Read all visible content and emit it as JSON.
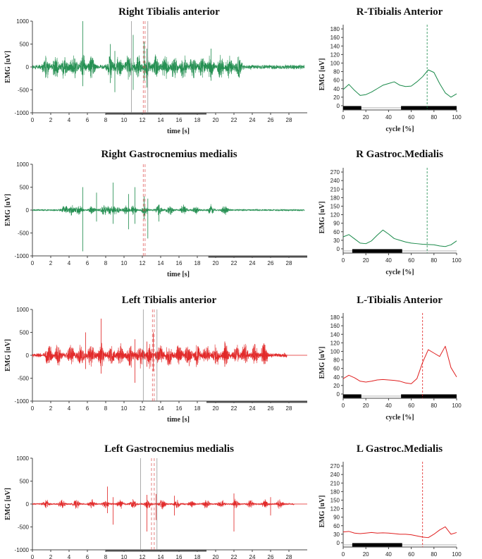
{
  "chart_data": [
    {
      "type": "line",
      "kind": "emg",
      "title": "Right Tibialis anterior",
      "xlabel": "time [s]",
      "ylabel": "EMG [uV]",
      "xlim": [
        0,
        30
      ],
      "ylim": [
        -1000,
        1000
      ],
      "x_ticks": [
        0,
        2,
        4,
        6,
        8,
        10,
        12,
        14,
        16,
        18,
        20,
        22,
        24,
        26,
        28
      ],
      "y_ticks": [
        1000,
        500,
        0,
        -500,
        -1000
      ],
      "signal_color": "#1a8a4a",
      "marker_color": "#e06060",
      "series": [
        {
          "x": [
            0,
            29.7
          ],
          "amplitude": 250
        }
      ],
      "bursts": [
        1.5,
        2.5,
        3.5,
        4.5,
        5.5,
        6.5,
        8.5,
        9.5,
        10.5,
        11.5,
        12.5,
        13.5,
        14.5,
        15.5,
        16.5,
        17.5,
        18.5,
        19.5,
        20.5,
        21.5,
        22.5
      ],
      "spikes": [
        [
          5.5,
          1000,
          -420
        ],
        [
          8.5,
          500,
          -350
        ],
        [
          9.0,
          350,
          -550
        ],
        [
          11.0,
          700,
          -500
        ],
        [
          12.2,
          550,
          -300
        ],
        [
          12.5,
          400,
          -450
        ],
        [
          19.5,
          400,
          -300
        ]
      ],
      "vlines_gray": [
        10.8,
        12.6
      ],
      "vlines_dashed": [
        12.1,
        12.3
      ],
      "baseline_bar": [
        8,
        19
      ]
    },
    {
      "type": "line",
      "kind": "cycle",
      "title": "R-Tibialis Anterior",
      "xlabel": "cycle [%]",
      "ylabel": "EMG [uV]",
      "xlim": [
        0,
        100
      ],
      "ylim": [
        -10,
        190
      ],
      "x_ticks": [
        0,
        20,
        40,
        60,
        80,
        100
      ],
      "y_ticks": [
        0,
        20,
        40,
        60,
        80,
        100,
        120,
        140,
        160,
        180
      ],
      "line_color": "#1a8a4a",
      "x": [
        0,
        5,
        10,
        15,
        20,
        25,
        30,
        35,
        40,
        45,
        50,
        55,
        60,
        65,
        70,
        75,
        80,
        85,
        90,
        95,
        100
      ],
      "y": [
        38,
        50,
        36,
        24,
        26,
        32,
        40,
        48,
        52,
        56,
        48,
        45,
        46,
        56,
        68,
        84,
        78,
        52,
        30,
        20,
        28
      ],
      "vline": 74,
      "on_bars": [
        [
          0,
          16
        ],
        [
          51,
          100
        ]
      ],
      "off_range": [
        16,
        51
      ]
    },
    {
      "type": "line",
      "kind": "emg",
      "title": "Right Gastrocnemius medialis",
      "xlabel": "time [s]",
      "ylabel": "EMG [uV]",
      "xlim": [
        0,
        30
      ],
      "ylim": [
        -1000,
        1000
      ],
      "x_ticks": [
        0,
        2,
        4,
        6,
        8,
        10,
        12,
        14,
        16,
        18,
        20,
        22,
        24,
        26,
        28
      ],
      "y_ticks": [
        1000,
        500,
        0,
        -500,
        -1000
      ],
      "signal_color": "#1a8a4a",
      "marker_color": "#e06060",
      "series": [
        {
          "x": [
            0,
            29.7
          ],
          "amplitude": 100
        }
      ],
      "bursts": [
        3.5,
        4.3,
        5.1,
        6.5,
        7.8,
        8.5,
        9.2,
        10.2,
        11.0,
        12.3,
        13.8,
        15.0,
        16.5,
        17.8,
        19.5,
        21.0
      ],
      "spikes": [
        [
          5.5,
          500,
          -900
        ],
        [
          7.0,
          380,
          -250
        ],
        [
          8.8,
          600,
          -300
        ],
        [
          10.5,
          350,
          -420
        ],
        [
          11.2,
          500,
          -300
        ],
        [
          12.2,
          300,
          -200
        ],
        [
          12.6,
          250,
          -620
        ],
        [
          13.8,
          120,
          -250
        ]
      ],
      "vlines_gray": [],
      "vlines_dashed": [
        12.1,
        12.3
      ],
      "baseline_bar": [
        19.2,
        30
      ]
    },
    {
      "type": "line",
      "kind": "cycle",
      "title": "R Gastroc.Medialis",
      "xlabel": "cycle [%]",
      "ylabel": "EMG [uV]",
      "xlim": [
        0,
        100
      ],
      "ylim": [
        -15,
        285
      ],
      "x_ticks": [
        0,
        20,
        40,
        60,
        80,
        100
      ],
      "y_ticks": [
        0,
        30,
        60,
        90,
        120,
        150,
        180,
        210,
        240,
        270
      ],
      "line_color": "#1a8a4a",
      "x": [
        0,
        5,
        10,
        15,
        20,
        25,
        30,
        35,
        40,
        45,
        50,
        55,
        60,
        65,
        70,
        75,
        80,
        85,
        90,
        95,
        100
      ],
      "y": [
        42,
        50,
        35,
        20,
        18,
        28,
        48,
        66,
        52,
        36,
        30,
        24,
        20,
        18,
        16,
        15,
        14,
        10,
        8,
        14,
        28
      ],
      "vline": 74,
      "on_bars": [
        [
          8,
          52
        ]
      ],
      "off_range": [
        0,
        100
      ]
    },
    {
      "type": "line",
      "kind": "emg",
      "title": "Left Tibialis anterior",
      "xlabel": "time [s]",
      "ylabel": "EMG [uV]",
      "xlim": [
        0,
        30
      ],
      "ylim": [
        -1000,
        1000
      ],
      "x_ticks": [
        0,
        2,
        4,
        6,
        8,
        10,
        12,
        14,
        16,
        18,
        20,
        22,
        24,
        26,
        28
      ],
      "y_ticks": [
        1000,
        500,
        0,
        -500,
        -1000
      ],
      "signal_color": "#e02020",
      "marker_color": "#e06060",
      "series": [
        {
          "x": [
            0,
            27.8
          ],
          "amplitude": 230
        }
      ],
      "bursts": [
        1.8,
        2.8,
        4.2,
        5.3,
        6.4,
        7.5,
        8.6,
        9.6,
        10.7,
        11.8,
        12.8,
        13.9,
        14.9,
        16.0,
        17.0,
        18.0,
        19.0,
        20.1,
        21.1,
        22.2,
        23.2,
        24.3,
        25.3
      ],
      "spikes": [
        [
          7.5,
          800,
          -400
        ],
        [
          5.8,
          500,
          -300
        ],
        [
          11.2,
          350,
          -600
        ],
        [
          13.2,
          500,
          -350
        ],
        [
          12.5,
          300,
          -250
        ],
        [
          21.0,
          300,
          -250
        ]
      ],
      "vlines_gray": [
        12.1,
        13.6
      ],
      "vlines_dashed": [
        13.1,
        13.3
      ],
      "baseline_bar": [
        19,
        30
      ],
      "tail": [
        27.8,
        30
      ]
    },
    {
      "type": "line",
      "kind": "cycle",
      "title": "L-Tibialis Anterior",
      "xlabel": "cycle [%]",
      "ylabel": "EMG [uV]",
      "xlim": [
        0,
        100
      ],
      "ylim": [
        -10,
        190
      ],
      "x_ticks": [
        0,
        20,
        40,
        60,
        80,
        100
      ],
      "y_ticks": [
        0,
        20,
        40,
        60,
        80,
        100,
        120,
        140,
        160,
        180
      ],
      "line_color": "#e02020",
      "x": [
        0,
        5,
        10,
        15,
        20,
        25,
        30,
        35,
        40,
        45,
        50,
        55,
        60,
        65,
        70,
        75,
        80,
        85,
        90,
        95,
        100
      ],
      "y": [
        36,
        44,
        38,
        30,
        28,
        30,
        33,
        34,
        33,
        32,
        30,
        26,
        24,
        36,
        74,
        104,
        96,
        88,
        112,
        62,
        40
      ],
      "vline": 70,
      "on_bars": [
        [
          0,
          16
        ],
        [
          51,
          100
        ]
      ],
      "off_range": [
        16,
        51
      ]
    },
    {
      "type": "line",
      "kind": "emg",
      "title": "Left Gastrocnemius medialis",
      "xlabel": "",
      "ylabel": "EMG [uV]",
      "xlim": [
        0,
        30
      ],
      "ylim": [
        -1000,
        1000
      ],
      "x_ticks": [
        0,
        2,
        4,
        6,
        8,
        10,
        12,
        14,
        16,
        18,
        20,
        22,
        24,
        26,
        28
      ],
      "y_ticks": [
        1000,
        500,
        0,
        -500,
        -1000
      ],
      "signal_color": "#e02020",
      "marker_color": "#e06060",
      "series": [
        {
          "x": [
            0,
            28.6
          ],
          "amplitude": 90
        }
      ],
      "bursts": [
        1.5,
        3.2,
        4.8,
        6.5,
        8.0,
        9.6,
        11.0,
        12.6,
        14.2,
        15.8,
        17.4,
        19.0,
        20.6,
        22.2,
        23.8,
        25.4,
        27.0
      ],
      "spikes": [
        [
          8.2,
          380,
          -200
        ],
        [
          8.8,
          150,
          -450
        ],
        [
          12.5,
          200,
          -600
        ],
        [
          13.5,
          220,
          -350
        ],
        [
          15.5,
          180,
          -250
        ],
        [
          22.0,
          230,
          -600
        ],
        [
          26.0,
          150,
          -250
        ]
      ],
      "vlines_gray": [
        11.8,
        13.6
      ],
      "vlines_dashed": [
        13.0,
        13.3
      ],
      "baseline_bar": [
        8,
        19
      ],
      "tail": [
        28.6,
        30
      ]
    },
    {
      "type": "line",
      "kind": "cycle",
      "title": "L Gastroc.Medialis",
      "xlabel": "",
      "ylabel": "EMG [uV]",
      "xlim": [
        0,
        100
      ],
      "ylim": [
        -15,
        285
      ],
      "x_ticks": [
        0,
        20,
        40,
        60,
        80,
        100
      ],
      "y_ticks": [
        0,
        30,
        60,
        90,
        120,
        150,
        180,
        210,
        240,
        270
      ],
      "line_color": "#e02020",
      "x": [
        0,
        5,
        10,
        15,
        20,
        25,
        30,
        35,
        40,
        45,
        50,
        55,
        60,
        65,
        70,
        75,
        80,
        85,
        90,
        95,
        100
      ],
      "y": [
        38,
        40,
        34,
        32,
        34,
        36,
        34,
        35,
        34,
        32,
        30,
        30,
        28,
        24,
        20,
        18,
        30,
        45,
        56,
        30,
        36
      ],
      "vline": 70,
      "on_bars": [
        [
          8,
          52
        ]
      ],
      "off_range": [
        0,
        100
      ]
    }
  ]
}
